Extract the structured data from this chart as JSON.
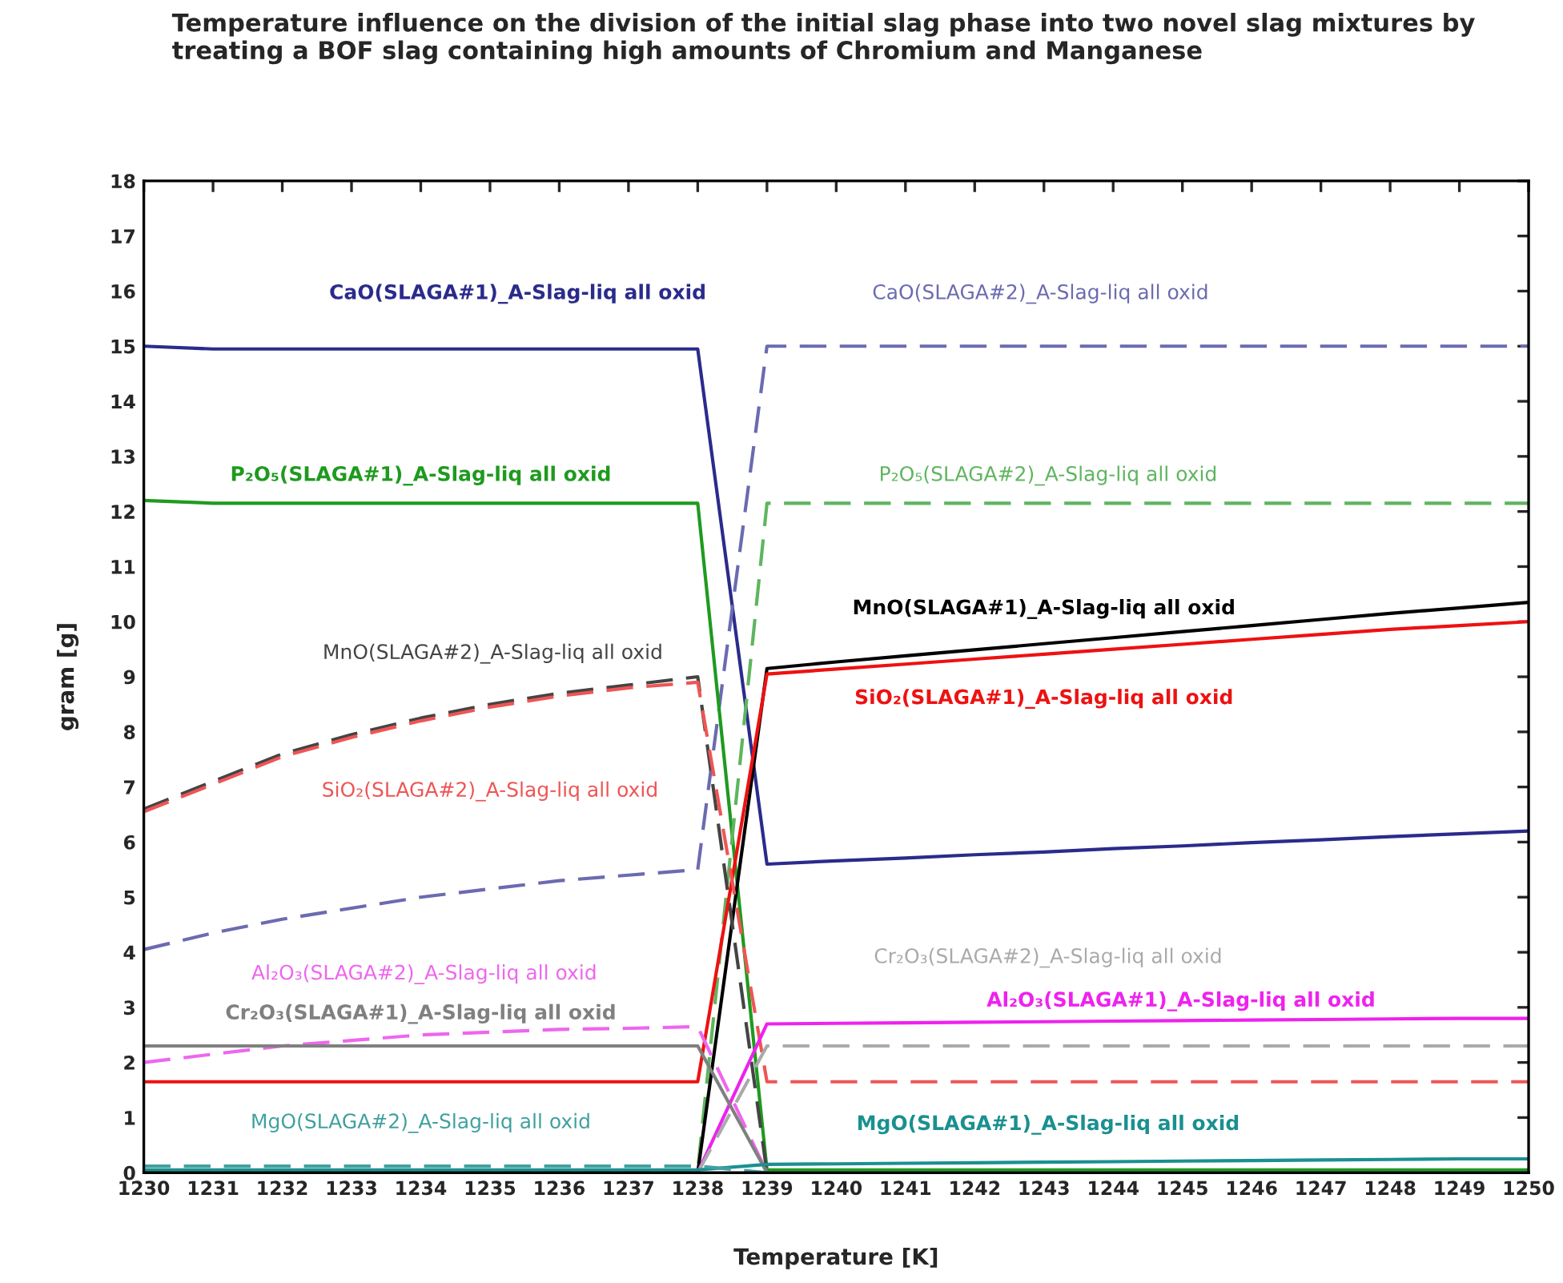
{
  "chart_data": {
    "type": "line",
    "title": "Temperature influence on the division of the initial slag phase into two novel slag mixtures by treating a BOF slag containing high amounts of Chromium and Manganese",
    "xlabel": "Temperature [K]",
    "ylabel": "gram [g]",
    "x": [
      1230,
      1231,
      1232,
      1233,
      1234,
      1235,
      1236,
      1237,
      1238,
      1239,
      1240,
      1241,
      1242,
      1243,
      1244,
      1245,
      1246,
      1247,
      1248,
      1249,
      1250
    ],
    "xlim": [
      1230,
      1250
    ],
    "xticks": [
      1230,
      1231,
      1232,
      1233,
      1234,
      1235,
      1236,
      1237,
      1238,
      1239,
      1240,
      1241,
      1242,
      1243,
      1244,
      1245,
      1246,
      1247,
      1248,
      1249,
      1250
    ],
    "ylim": [
      0,
      18
    ],
    "yticks": [
      0,
      1,
      2,
      3,
      4,
      5,
      6,
      7,
      8,
      9,
      10,
      11,
      12,
      13,
      14,
      15,
      16,
      17,
      18
    ],
    "grid": false,
    "legend": false,
    "marker": "none",
    "series": [
      {
        "name": "CaO(SLAGA#1)_A-Slag-liq all oxid",
        "color": "#2b2b8c",
        "line_style": "solid",
        "values": [
          15.0,
          14.95,
          14.95,
          14.95,
          14.95,
          14.95,
          14.95,
          14.95,
          14.95,
          5.6,
          5.66,
          5.71,
          5.77,
          5.82,
          5.88,
          5.93,
          5.99,
          6.04,
          6.1,
          6.15,
          6.2
        ]
      },
      {
        "name": "CaO(SLAGA#2)_A-Slag-liq all oxid",
        "color": "#6b6bb0",
        "line_style": "dashed",
        "values": [
          4.05,
          4.35,
          4.6,
          4.8,
          5.0,
          5.15,
          5.3,
          5.4,
          5.5,
          15.0,
          15.0,
          15.0,
          15.0,
          15.0,
          15.0,
          15.0,
          15.0,
          15.0,
          15.0,
          15.0,
          15.0
        ]
      },
      {
        "name": "P₂O₅(SLAGA#1)_A-Slag-liq all oxid",
        "color": "#1f9a1f",
        "line_style": "solid",
        "values": [
          12.2,
          12.15,
          12.15,
          12.15,
          12.15,
          12.15,
          12.15,
          12.15,
          12.15,
          0.05,
          0.05,
          0.05,
          0.05,
          0.05,
          0.05,
          0.05,
          0.05,
          0.05,
          0.05,
          0.05,
          0.05
        ]
      },
      {
        "name": "P₂O₅(SLAGA#2)_A-Slag-liq all oxid",
        "color": "#5fb55f",
        "line_style": "dashed",
        "values": [
          0.05,
          0.05,
          0.05,
          0.05,
          0.05,
          0.05,
          0.05,
          0.05,
          0.05,
          12.15,
          12.15,
          12.15,
          12.15,
          12.15,
          12.15,
          12.15,
          12.15,
          12.15,
          12.15,
          12.15,
          12.15
        ]
      },
      {
        "name": "MnO(SLAGA#1)_A-Slag-liq all oxid",
        "color": "#000000",
        "line_style": "solid",
        "values": [
          null,
          null,
          null,
          null,
          null,
          null,
          null,
          null,
          0,
          9.15,
          9.27,
          9.38,
          9.49,
          9.6,
          9.71,
          9.82,
          9.93,
          10.04,
          10.15,
          10.25,
          10.35
        ]
      },
      {
        "name": "MnO(SLAGA#2)_A-Slag-liq all oxid",
        "color": "#444444",
        "line_style": "dashed",
        "values": [
          6.6,
          7.1,
          7.6,
          7.95,
          8.25,
          8.5,
          8.7,
          8.85,
          9.0,
          0,
          null,
          null,
          null,
          null,
          null,
          null,
          null,
          null,
          null,
          null,
          null
        ]
      },
      {
        "name": "SiO₂(SLAGA#1)_A-Slag-liq all oxid",
        "color": "#ee1111",
        "line_style": "solid",
        "values": [
          1.65,
          1.65,
          1.65,
          1.65,
          1.65,
          1.65,
          1.65,
          1.65,
          1.65,
          9.05,
          9.14,
          9.23,
          9.32,
          9.41,
          9.5,
          9.59,
          9.68,
          9.77,
          9.86,
          9.93,
          10.0
        ]
      },
      {
        "name": "SiO₂(SLAGA#2)_A-Slag-liq all oxid",
        "color": "#ee5555",
        "line_style": "dashed",
        "values": [
          6.55,
          7.05,
          7.55,
          7.9,
          8.2,
          8.45,
          8.65,
          8.8,
          8.9,
          1.65,
          1.65,
          1.65,
          1.65,
          1.65,
          1.65,
          1.65,
          1.65,
          1.65,
          1.65,
          1.65,
          1.65
        ]
      },
      {
        "name": "Al₂O₃(SLAGA#1)_A-Slag-liq all oxid",
        "color": "#ee22ee",
        "line_style": "solid",
        "values": [
          null,
          null,
          null,
          null,
          null,
          null,
          null,
          null,
          0,
          2.7,
          2.71,
          2.72,
          2.73,
          2.74,
          2.75,
          2.76,
          2.77,
          2.78,
          2.79,
          2.8,
          2.8
        ]
      },
      {
        "name": "Al₂O₃(SLAGA#2)_A-Slag-liq all oxid",
        "color": "#ee66ee",
        "line_style": "dashed",
        "values": [
          2.0,
          2.15,
          2.3,
          2.4,
          2.5,
          2.55,
          2.6,
          2.62,
          2.65,
          0,
          null,
          null,
          null,
          null,
          null,
          null,
          null,
          null,
          null,
          null,
          null
        ]
      },
      {
        "name": "Cr₂O₃(SLAGA#1)_A-Slag-liq all oxid",
        "color": "#808080",
        "line_style": "solid",
        "values": [
          2.3,
          2.3,
          2.3,
          2.3,
          2.3,
          2.3,
          2.3,
          2.3,
          2.3,
          0,
          null,
          null,
          null,
          null,
          null,
          null,
          null,
          null,
          null,
          null,
          null
        ]
      },
      {
        "name": "Cr₂O₃(SLAGA#2)_A-Slag-liq all oxid",
        "color": "#aaaaaa",
        "line_style": "dashed",
        "values": [
          null,
          null,
          null,
          null,
          null,
          null,
          null,
          null,
          0,
          2.3,
          2.3,
          2.3,
          2.3,
          2.3,
          2.3,
          2.3,
          2.3,
          2.3,
          2.3,
          2.3,
          2.3
        ]
      },
      {
        "name": "MgO(SLAGA#1)_A-Slag-liq all oxid",
        "color": "#1a9090",
        "line_style": "solid",
        "values": [
          0.05,
          0.05,
          0.05,
          0.05,
          0.05,
          0.05,
          0.05,
          0.05,
          0.05,
          0.15,
          0.16,
          0.17,
          0.18,
          0.19,
          0.2,
          0.21,
          0.22,
          0.23,
          0.24,
          0.25,
          0.25
        ]
      },
      {
        "name": "MgO(SLAGA#2)_A-Slag-liq all oxid",
        "color": "#40a0a0",
        "line_style": "dashed",
        "values": [
          0.12,
          0.12,
          0.12,
          0.12,
          0.12,
          0.12,
          0.12,
          0.12,
          0.12,
          0,
          0,
          0,
          0,
          0,
          0,
          0,
          0,
          0,
          0,
          0,
          0
        ]
      }
    ]
  }
}
